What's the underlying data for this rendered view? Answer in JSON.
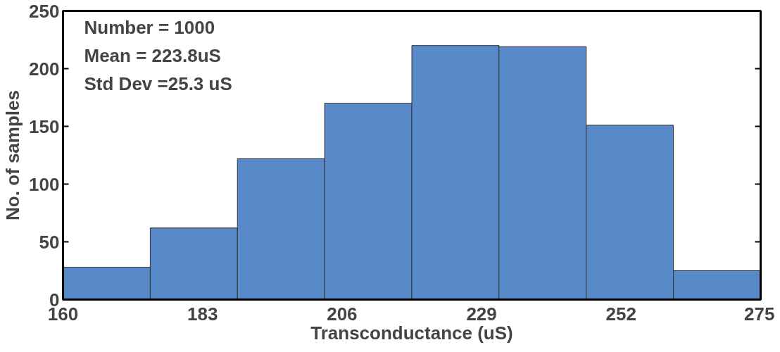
{
  "chart_data": {
    "type": "histogram",
    "xlabel": "Transconductance (uS)",
    "ylabel": "No. of samples",
    "bins": [
      160,
      174.375,
      188.75,
      203.125,
      217.5,
      231.875,
      246.25,
      260.625,
      275
    ],
    "values": [
      28,
      62,
      122,
      170,
      220,
      219,
      151,
      25
    ],
    "color": "#5889c9",
    "xlim": [
      160,
      275
    ],
    "xticks": [
      160,
      183,
      206,
      229,
      252,
      275
    ],
    "ylim": [
      0,
      250
    ],
    "yticks": [
      0,
      50,
      100,
      150,
      200,
      250
    ],
    "grid": false,
    "annotations": [
      "Number = 1000",
      "Mean = 223.8uS",
      "Std Dev =25.3 uS"
    ]
  }
}
